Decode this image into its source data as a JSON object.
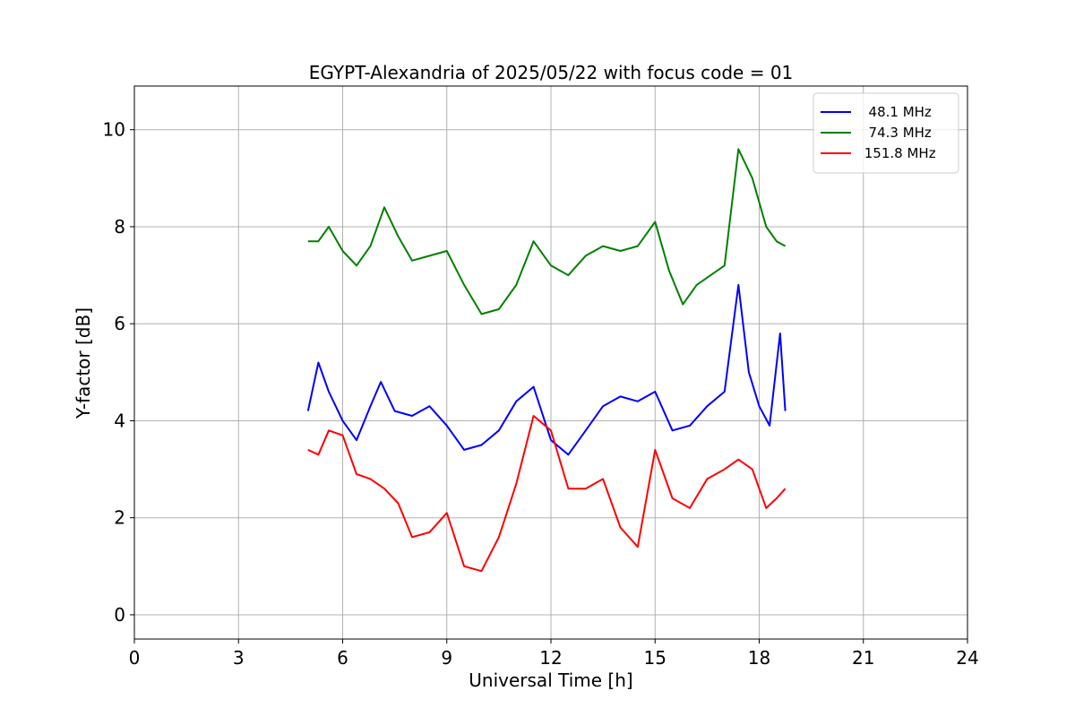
{
  "chart_data": {
    "type": "line",
    "title": "EGYPT-Alexandria of 2025/05/22 with focus code = 01",
    "xlabel": "Universal Time [h]",
    "ylabel": "Y-factor [dB]",
    "xlim": [
      0,
      24
    ],
    "ylim": [
      -0.5,
      10.9
    ],
    "xticks": [
      0,
      3,
      6,
      9,
      12,
      15,
      18,
      21,
      24
    ],
    "yticks": [
      0,
      2,
      4,
      6,
      8,
      10
    ],
    "grid": true,
    "legend_position": "top-right",
    "series": [
      {
        "name": "  48.1 MHz",
        "color": "#0000ff",
        "points": [
          [
            5.0,
            4.2
          ],
          [
            5.3,
            5.2
          ],
          [
            5.6,
            4.6
          ],
          [
            6.0,
            4.0
          ],
          [
            6.4,
            3.6
          ],
          [
            6.8,
            4.3
          ],
          [
            7.1,
            4.8
          ],
          [
            7.5,
            4.2
          ],
          [
            8.0,
            4.1
          ],
          [
            8.5,
            4.3
          ],
          [
            9.0,
            3.9
          ],
          [
            9.5,
            3.4
          ],
          [
            10.0,
            3.5
          ],
          [
            10.5,
            3.8
          ],
          [
            11.0,
            4.4
          ],
          [
            11.5,
            4.7
          ],
          [
            12.0,
            3.6
          ],
          [
            12.5,
            3.3
          ],
          [
            13.0,
            3.8
          ],
          [
            13.5,
            4.3
          ],
          [
            14.0,
            4.5
          ],
          [
            14.5,
            4.4
          ],
          [
            15.0,
            4.6
          ],
          [
            15.5,
            3.8
          ],
          [
            16.0,
            3.9
          ],
          [
            16.5,
            4.3
          ],
          [
            17.0,
            4.6
          ],
          [
            17.4,
            6.8
          ],
          [
            17.7,
            5.0
          ],
          [
            18.0,
            4.3
          ],
          [
            18.3,
            3.9
          ],
          [
            18.6,
            5.8
          ],
          [
            18.75,
            4.2
          ]
        ]
      },
      {
        "name": "  74.3 MHz",
        "color": "#008000",
        "points": [
          [
            5.0,
            7.7
          ],
          [
            5.3,
            7.7
          ],
          [
            5.6,
            8.0
          ],
          [
            6.0,
            7.5
          ],
          [
            6.4,
            7.2
          ],
          [
            6.8,
            7.6
          ],
          [
            7.2,
            8.4
          ],
          [
            7.6,
            7.8
          ],
          [
            8.0,
            7.3
          ],
          [
            8.5,
            7.4
          ],
          [
            9.0,
            7.5
          ],
          [
            9.5,
            6.8
          ],
          [
            10.0,
            6.2
          ],
          [
            10.5,
            6.3
          ],
          [
            11.0,
            6.8
          ],
          [
            11.5,
            7.7
          ],
          [
            12.0,
            7.2
          ],
          [
            12.5,
            7.0
          ],
          [
            13.0,
            7.4
          ],
          [
            13.5,
            7.6
          ],
          [
            14.0,
            7.5
          ],
          [
            14.5,
            7.6
          ],
          [
            15.0,
            8.1
          ],
          [
            15.4,
            7.1
          ],
          [
            15.8,
            6.4
          ],
          [
            16.2,
            6.8
          ],
          [
            16.6,
            7.0
          ],
          [
            17.0,
            7.2
          ],
          [
            17.4,
            9.6
          ],
          [
            17.8,
            9.0
          ],
          [
            18.2,
            8.0
          ],
          [
            18.5,
            7.7
          ],
          [
            18.75,
            7.6
          ]
        ]
      },
      {
        "name": " 151.8 MHz",
        "color": "#ff0000",
        "points": [
          [
            5.0,
            3.4
          ],
          [
            5.3,
            3.3
          ],
          [
            5.6,
            3.8
          ],
          [
            6.0,
            3.7
          ],
          [
            6.4,
            2.9
          ],
          [
            6.8,
            2.8
          ],
          [
            7.2,
            2.6
          ],
          [
            7.6,
            2.3
          ],
          [
            8.0,
            1.6
          ],
          [
            8.5,
            1.7
          ],
          [
            9.0,
            2.1
          ],
          [
            9.5,
            1.0
          ],
          [
            10.0,
            0.9
          ],
          [
            10.5,
            1.6
          ],
          [
            11.0,
            2.7
          ],
          [
            11.5,
            4.1
          ],
          [
            12.0,
            3.8
          ],
          [
            12.5,
            2.6
          ],
          [
            13.0,
            2.6
          ],
          [
            13.5,
            2.8
          ],
          [
            14.0,
            1.8
          ],
          [
            14.5,
            1.4
          ],
          [
            15.0,
            3.4
          ],
          [
            15.5,
            2.4
          ],
          [
            16.0,
            2.2
          ],
          [
            16.5,
            2.8
          ],
          [
            17.0,
            3.0
          ],
          [
            17.4,
            3.2
          ],
          [
            17.8,
            3.0
          ],
          [
            18.2,
            2.2
          ],
          [
            18.5,
            2.4
          ],
          [
            18.75,
            2.6
          ]
        ]
      }
    ]
  }
}
